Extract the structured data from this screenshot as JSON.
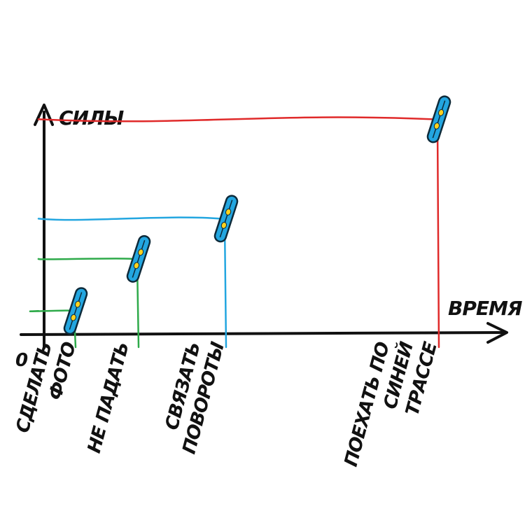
{
  "chart_data": {
    "type": "line",
    "title": "",
    "ylabel": "СИЛЫ",
    "xlabel": "ВРЕМЯ",
    "origin_label": "0",
    "grid": false,
    "legend": "none",
    "ylim": [
      0,
      10
    ],
    "series": [
      {
        "color": "#2eaa4a",
        "category_index": 0,
        "value": 1.0
      },
      {
        "color": "#2eaa4a",
        "category_index": 1,
        "value": 3.2
      },
      {
        "color": "#23a6e0",
        "category_index": 2,
        "value": 4.9
      },
      {
        "color": "#e02a2a",
        "category_index": 3,
        "value": 9.1
      }
    ],
    "categories": [
      {
        "lines": [
          "СДЕЛАТЬ",
          "ФОТО"
        ]
      },
      {
        "lines": [
          "НЕ ПАДАТЬ"
        ]
      },
      {
        "lines": [
          "СВЯЗАТЬ",
          "ПОВОРОТЫ"
        ]
      },
      {
        "lines": [
          "ПОЕХАТЬ ПО",
          "СИНЕЙ",
          "ТРАССЕ"
        ]
      }
    ],
    "marker_icon": "snowboard-icon",
    "marker_color": "#23a6e0"
  }
}
